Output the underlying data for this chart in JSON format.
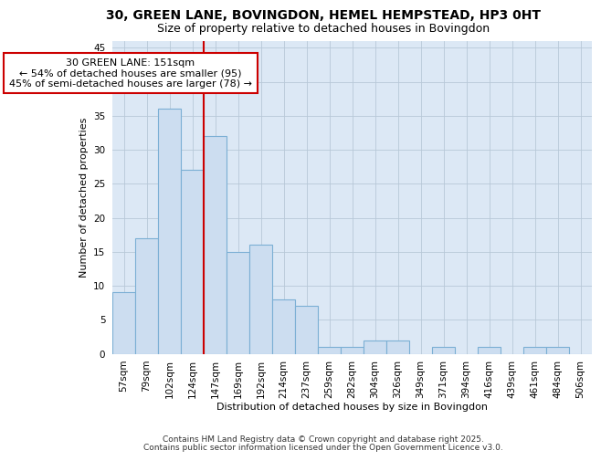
{
  "title_line1": "30, GREEN LANE, BOVINGDON, HEMEL HEMPSTEAD, HP3 0HT",
  "title_line2": "Size of property relative to detached houses in Bovingdon",
  "xlabel": "Distribution of detached houses by size in Bovingdon",
  "ylabel": "Number of detached properties",
  "categories": [
    "57sqm",
    "79sqm",
    "102sqm",
    "124sqm",
    "147sqm",
    "169sqm",
    "192sqm",
    "214sqm",
    "237sqm",
    "259sqm",
    "282sqm",
    "304sqm",
    "326sqm",
    "349sqm",
    "371sqm",
    "394sqm",
    "416sqm",
    "439sqm",
    "461sqm",
    "484sqm",
    "506sqm"
  ],
  "values": [
    9,
    17,
    36,
    27,
    32,
    15,
    16,
    8,
    7,
    1,
    1,
    2,
    2,
    0,
    1,
    0,
    1,
    0,
    1,
    1,
    0
  ],
  "bar_color": "#ccddf0",
  "bar_edge_color": "#7bafd4",
  "grid_color": "#b8c8d8",
  "bg_color": "#dce8f5",
  "vline_color": "#cc0000",
  "vline_x": 3.5,
  "annotation_text": "30 GREEN LANE: 151sqm\n← 54% of detached houses are smaller (95)\n45% of semi-detached houses are larger (78) →",
  "annotation_box_facecolor": "#ffffff",
  "annotation_box_edgecolor": "#cc0000",
  "ylim": [
    0,
    46
  ],
  "yticks": [
    0,
    5,
    10,
    15,
    20,
    25,
    30,
    35,
    40,
    45
  ],
  "footer_line1": "Contains HM Land Registry data © Crown copyright and database right 2025.",
  "footer_line2": "Contains public sector information licensed under the Open Government Licence v3.0.",
  "title1_fontsize": 10,
  "title2_fontsize": 9,
  "axis_label_fontsize": 8,
  "tick_fontsize": 7.5,
  "annotation_fontsize": 8,
  "footer_fontsize": 6.5
}
